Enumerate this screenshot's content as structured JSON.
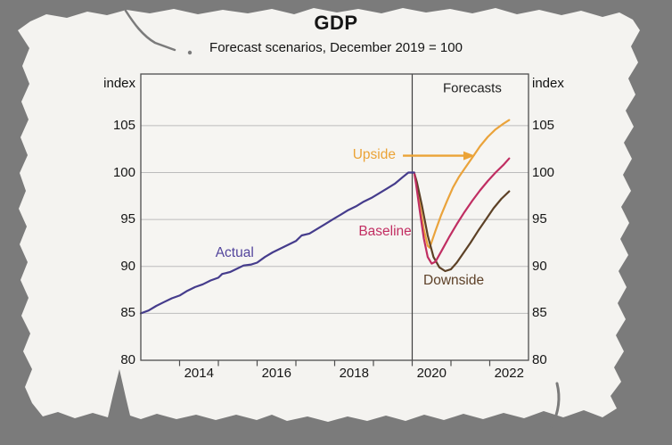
{
  "background": {
    "canvas_color": "#7b7b7b",
    "paper_color": "#f4f3f0",
    "plot_fill": "#f6f5f2",
    "grid_color": "#bcbcbc",
    "axis_color": "#4e4e4e"
  },
  "header": {
    "title": "GDP",
    "subtitle": "Forecast scenarios, December 2019 = 100"
  },
  "chart_data": {
    "type": "line",
    "title": "GDP",
    "subtitle": "Forecast scenarios, December 2019 = 100",
    "grid": true,
    "legend": "inline-labels",
    "x_axis": {
      "range": [
        2013,
        2023
      ],
      "ticks": [
        2014,
        2015,
        2016,
        2017,
        2018,
        2019,
        2020,
        2021,
        2022
      ],
      "tick_labels": [
        {
          "text": "2014",
          "x": 2014.5
        },
        {
          "text": "2016",
          "x": 2016.5
        },
        {
          "text": "2018",
          "x": 2018.5
        },
        {
          "text": "2020",
          "x": 2020.5
        },
        {
          "text": "2022",
          "x": 2022.5
        }
      ]
    },
    "y_axis": {
      "range": [
        80,
        110.5
      ],
      "ticks": [
        80,
        85,
        90,
        95,
        100,
        105
      ],
      "unit_label": "index",
      "label_sides": "both"
    },
    "separator": {
      "x": 2020.0,
      "label": "Forecasts"
    },
    "series": [
      {
        "name": "Upside",
        "color": "#eaa33b",
        "points": [
          [
            2020.05,
            100.0
          ],
          [
            2020.1,
            99.0
          ],
          [
            2020.2,
            96.5
          ],
          [
            2020.3,
            94.0
          ],
          [
            2020.4,
            92.2
          ],
          [
            2020.45,
            92.0
          ],
          [
            2020.6,
            93.8
          ],
          [
            2020.75,
            95.5
          ],
          [
            2020.9,
            97.0
          ],
          [
            2021.05,
            98.4
          ],
          [
            2021.2,
            99.5
          ],
          [
            2021.35,
            100.4
          ],
          [
            2021.55,
            101.6
          ],
          [
            2021.75,
            102.8
          ],
          [
            2021.95,
            103.8
          ],
          [
            2022.15,
            104.6
          ],
          [
            2022.35,
            105.2
          ],
          [
            2022.5,
            105.6
          ]
        ]
      },
      {
        "name": "Downside",
        "color": "#5d4126",
        "points": [
          [
            2020.05,
            100.0
          ],
          [
            2020.12,
            99.0
          ],
          [
            2020.25,
            96.5
          ],
          [
            2020.4,
            93.3
          ],
          [
            2020.55,
            91.0
          ],
          [
            2020.7,
            89.9
          ],
          [
            2020.85,
            89.5
          ],
          [
            2021.0,
            89.7
          ],
          [
            2021.15,
            90.4
          ],
          [
            2021.3,
            91.3
          ],
          [
            2021.5,
            92.5
          ],
          [
            2021.7,
            93.8
          ],
          [
            2021.9,
            95.0
          ],
          [
            2022.1,
            96.2
          ],
          [
            2022.3,
            97.2
          ],
          [
            2022.5,
            98.0
          ]
        ]
      },
      {
        "name": "Baseline",
        "color": "#c02e62",
        "points": [
          [
            2020.05,
            100.0
          ],
          [
            2020.1,
            98.8
          ],
          [
            2020.2,
            95.8
          ],
          [
            2020.3,
            93.0
          ],
          [
            2020.4,
            91.0
          ],
          [
            2020.5,
            90.3
          ],
          [
            2020.6,
            90.5
          ],
          [
            2020.75,
            91.6
          ],
          [
            2020.95,
            93.1
          ],
          [
            2021.15,
            94.5
          ],
          [
            2021.35,
            95.8
          ],
          [
            2021.55,
            97.0
          ],
          [
            2021.75,
            98.1
          ],
          [
            2021.95,
            99.1
          ],
          [
            2022.15,
            100.0
          ],
          [
            2022.35,
            100.8
          ],
          [
            2022.5,
            101.5
          ]
        ]
      },
      {
        "name": "Actual",
        "color": "#453c8c",
        "points": [
          [
            2013.0,
            85.0
          ],
          [
            2013.2,
            85.3
          ],
          [
            2013.4,
            85.8
          ],
          [
            2013.6,
            86.2
          ],
          [
            2013.8,
            86.6
          ],
          [
            2014.0,
            86.9
          ],
          [
            2014.2,
            87.4
          ],
          [
            2014.4,
            87.8
          ],
          [
            2014.6,
            88.1
          ],
          [
            2014.8,
            88.5
          ],
          [
            2015.0,
            88.8
          ],
          [
            2015.1,
            89.2
          ],
          [
            2015.3,
            89.4
          ],
          [
            2015.5,
            89.8
          ],
          [
            2015.65,
            90.1
          ],
          [
            2015.85,
            90.2
          ],
          [
            2016.0,
            90.4
          ],
          [
            2016.2,
            91.0
          ],
          [
            2016.4,
            91.5
          ],
          [
            2016.6,
            91.9
          ],
          [
            2016.8,
            92.3
          ],
          [
            2017.0,
            92.7
          ],
          [
            2017.15,
            93.3
          ],
          [
            2017.35,
            93.5
          ],
          [
            2017.55,
            94.0
          ],
          [
            2017.75,
            94.5
          ],
          [
            2017.95,
            95.0
          ],
          [
            2018.15,
            95.5
          ],
          [
            2018.35,
            96.0
          ],
          [
            2018.55,
            96.4
          ],
          [
            2018.75,
            96.9
          ],
          [
            2018.95,
            97.3
          ],
          [
            2019.15,
            97.8
          ],
          [
            2019.35,
            98.3
          ],
          [
            2019.55,
            98.8
          ],
          [
            2019.75,
            99.5
          ],
          [
            2019.9,
            100.0
          ],
          [
            2020.05,
            100.0
          ]
        ]
      }
    ],
    "annotations": [
      {
        "id": "forecasts",
        "text": "Forecasts",
        "color": "#1f1f1f",
        "x": 2021.55,
        "y": 109.0,
        "size": 15
      },
      {
        "id": "upside",
        "text": "Upside",
        "color": "#eba336",
        "x": 2019.02,
        "y": 101.9,
        "size": 15.5
      },
      {
        "id": "baseline",
        "text": "Baseline",
        "color": "#c22e62",
        "x": 2019.3,
        "y": 93.7,
        "size": 15.5
      },
      {
        "id": "actual",
        "text": "Actual",
        "color": "#53459c",
        "x": 2015.42,
        "y": 91.4,
        "size": 15.5
      },
      {
        "id": "downside",
        "text": "Downside",
        "color": "#5e4128",
        "x": 2021.07,
        "y": 88.5,
        "size": 15.5
      }
    ],
    "arrow": {
      "x1": 2019.76,
      "x2": 2021.62,
      "y": 101.8,
      "color": "#eba336"
    }
  }
}
